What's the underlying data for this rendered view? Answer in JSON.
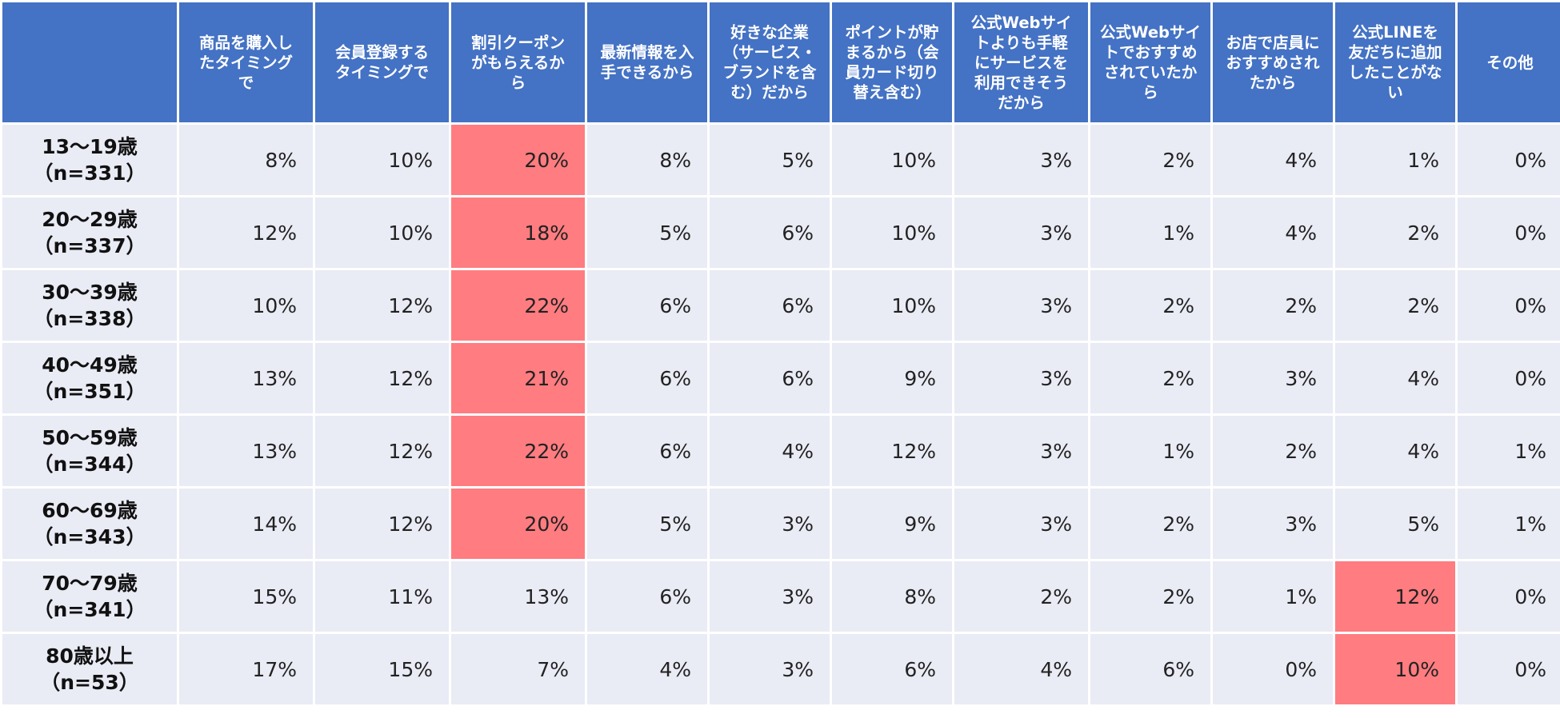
{
  "chart_data": {
    "type": "table",
    "columns": [
      "商品を購入し\nたタイミング\nで",
      "会員登録する\nタイミングで",
      "割引クーポン\nがもらえるか\nら",
      "最新情報を入\n手できるから",
      "好きな企業\n（サービス・\nブランドを含\nむ）だから",
      "ポイントが貯\nまるから（会\n員カード切り\n替え含む）",
      "公式Webサイ\nトよりも手軽\nにサービスを\n利用できそう\nだから",
      "公式Webサイ\nトでおすすめ\nされていたか\nら",
      "お店で店員に\nおすすめされ\nたから",
      "公式LINEを\n友だちに追加\nしたことがな\nい",
      "その他"
    ],
    "rows": [
      {
        "label": "13〜19歳\n（n=331）",
        "values": [
          "8%",
          "10%",
          "20%",
          "8%",
          "5%",
          "10%",
          "3%",
          "2%",
          "4%",
          "1%",
          "0%"
        ],
        "highlight": [
          2
        ]
      },
      {
        "label": "20〜29歳\n（n=337）",
        "values": [
          "12%",
          "10%",
          "18%",
          "5%",
          "6%",
          "10%",
          "3%",
          "1%",
          "4%",
          "2%",
          "0%"
        ],
        "highlight": [
          2
        ]
      },
      {
        "label": "30〜39歳\n（n=338）",
        "values": [
          "10%",
          "12%",
          "22%",
          "6%",
          "6%",
          "10%",
          "3%",
          "2%",
          "2%",
          "2%",
          "0%"
        ],
        "highlight": [
          2
        ]
      },
      {
        "label": "40〜49歳\n（n=351）",
        "values": [
          "13%",
          "12%",
          "21%",
          "6%",
          "6%",
          "9%",
          "3%",
          "2%",
          "3%",
          "4%",
          "0%"
        ],
        "highlight": [
          2
        ]
      },
      {
        "label": "50〜59歳\n（n=344）",
        "values": [
          "13%",
          "12%",
          "22%",
          "6%",
          "4%",
          "12%",
          "3%",
          "1%",
          "2%",
          "4%",
          "1%"
        ],
        "highlight": [
          2
        ]
      },
      {
        "label": "60〜69歳\n（n=343）",
        "values": [
          "14%",
          "12%",
          "20%",
          "5%",
          "3%",
          "9%",
          "3%",
          "2%",
          "3%",
          "5%",
          "1%"
        ],
        "highlight": [
          2
        ]
      },
      {
        "label": "70〜79歳\n（n=341）",
        "values": [
          "15%",
          "11%",
          "13%",
          "6%",
          "3%",
          "8%",
          "2%",
          "2%",
          "1%",
          "12%",
          "0%"
        ],
        "highlight": [
          9
        ]
      },
      {
        "label": "80歳以上\n（n=53）",
        "values": [
          "17%",
          "15%",
          "7%",
          "4%",
          "3%",
          "6%",
          "4%",
          "6%",
          "0%",
          "10%",
          "0%"
        ],
        "highlight": [
          9
        ]
      }
    ],
    "colors": {
      "header": "#4472C4",
      "cell": "#E9EBF5",
      "highlight": "#FF7C80"
    }
  }
}
